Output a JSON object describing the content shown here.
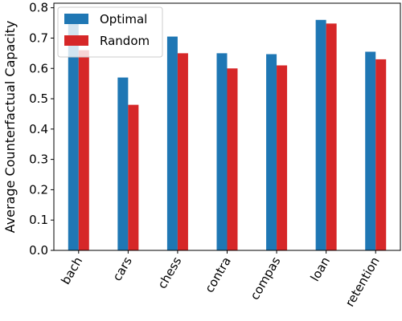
{
  "chart_data": {
    "type": "bar",
    "title": "",
    "xlabel": "",
    "ylabel": "Average Counterfactual Capacity",
    "categories": [
      "bach",
      "cars",
      "chess",
      "contra",
      "compas",
      "loan",
      "retention"
    ],
    "series": [
      {
        "name": "Optimal",
        "color": "#1f77b4",
        "values": [
          0.78,
          0.57,
          0.705,
          0.65,
          0.647,
          0.76,
          0.655
        ]
      },
      {
        "name": "Random",
        "color": "#d62728",
        "values": [
          0.66,
          0.48,
          0.65,
          0.6,
          0.61,
          0.748,
          0.63
        ]
      }
    ],
    "ylim": [
      0,
      0.815
    ],
    "yticks": [
      "0.0",
      "0.1",
      "0.2",
      "0.3",
      "0.4",
      "0.5",
      "0.6",
      "0.7",
      "0.8"
    ],
    "grid": false,
    "legend_position": "top-left"
  }
}
